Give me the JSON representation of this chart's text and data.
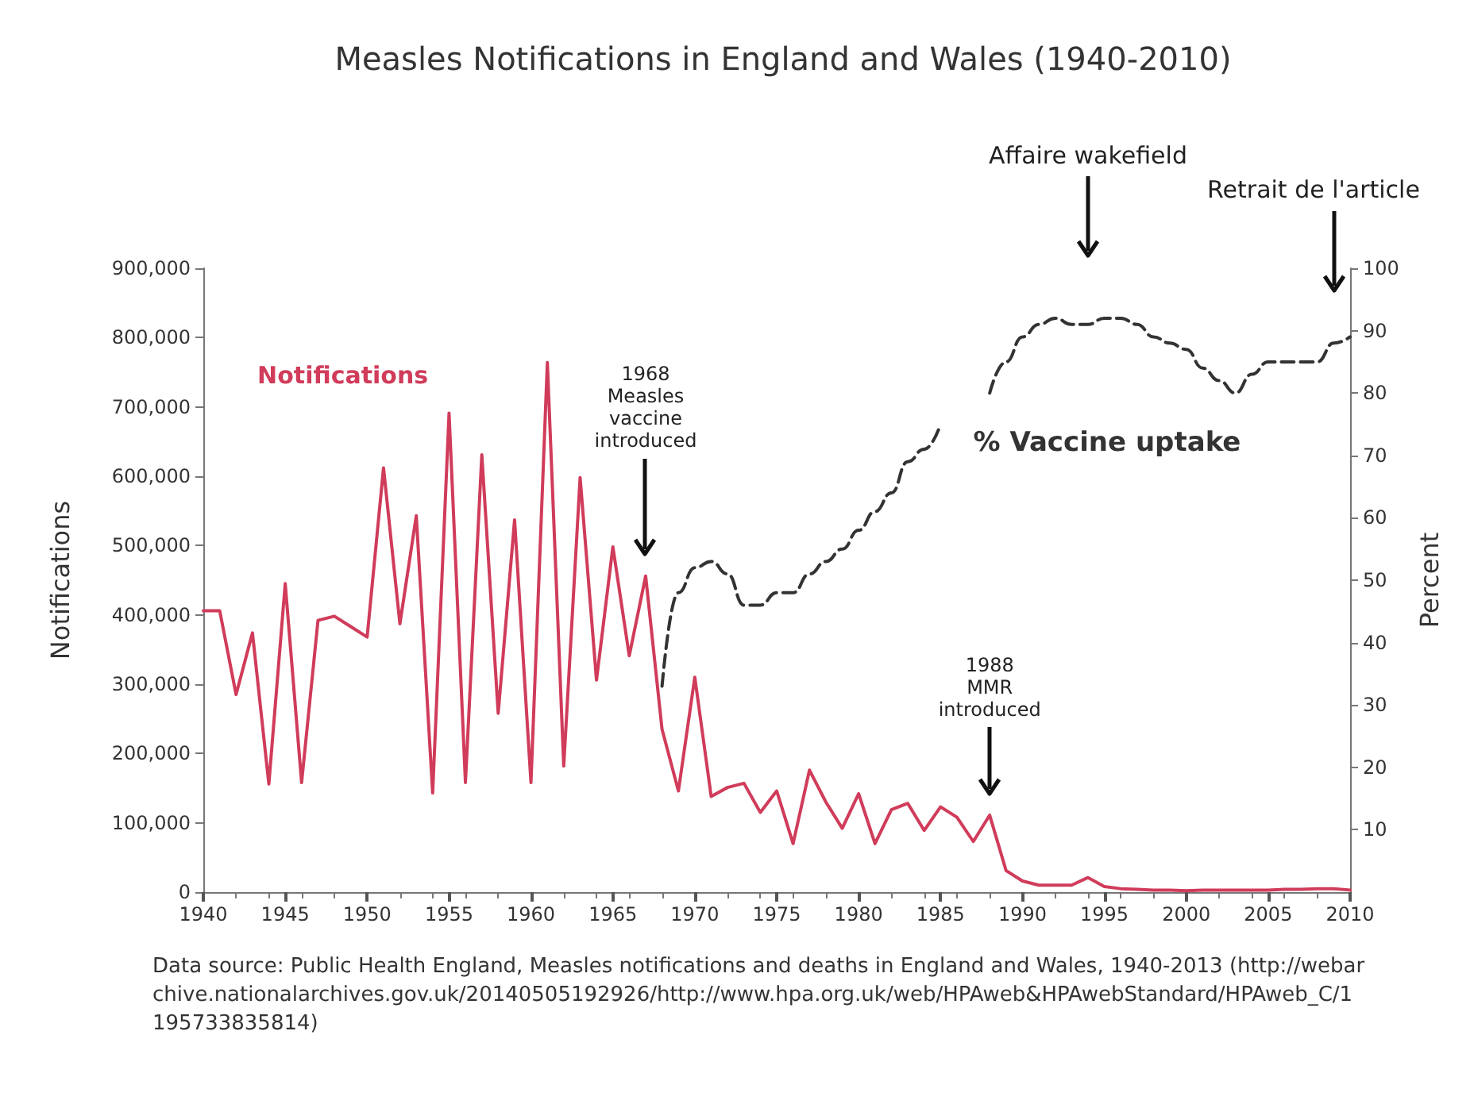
{
  "chart_data": {
    "type": "line",
    "title": "Measles Notifications in England and Wales (1940-2010)",
    "ylabel": "Notifications",
    "y2label": "Percent",
    "x": [
      1940,
      1941,
      1942,
      1943,
      1944,
      1945,
      1946,
      1947,
      1948,
      1949,
      1950,
      1951,
      1952,
      1953,
      1954,
      1955,
      1956,
      1957,
      1958,
      1959,
      1960,
      1961,
      1962,
      1963,
      1964,
      1965,
      1966,
      1967,
      1968,
      1969,
      1970,
      1971,
      1972,
      1973,
      1974,
      1975,
      1976,
      1977,
      1978,
      1979,
      1980,
      1981,
      1982,
      1983,
      1984,
      1985,
      1986,
      1987,
      1988,
      1989,
      1990,
      1991,
      1992,
      1993,
      1994,
      1995,
      1996,
      1997,
      1998,
      1999,
      2000,
      2001,
      2002,
      2003,
      2004,
      2005,
      2006,
      2007,
      2008,
      2009,
      2010
    ],
    "series": [
      {
        "name": "Notifications",
        "color": "#d03c5a",
        "values": [
          406000,
          406000,
          285000,
          374000,
          156000,
          445000,
          158000,
          392000,
          398000,
          383000,
          368000,
          612000,
          387000,
          543000,
          143000,
          691000,
          158000,
          631000,
          258000,
          537000,
          158000,
          764000,
          182000,
          598000,
          306000,
          498000,
          341000,
          456000,
          235000,
          146000,
          310000,
          138000,
          151000,
          157000,
          115000,
          146000,
          70000,
          176000,
          130000,
          92000,
          142000,
          70000,
          119000,
          128000,
          89000,
          123000,
          108000,
          73000,
          111000,
          31000,
          16000,
          10000,
          10000,
          10000,
          21000,
          8000,
          5000,
          4000,
          3000,
          3000,
          2000,
          3000,
          3000,
          3000,
          3000,
          3000,
          4000,
          4000,
          5000,
          5000,
          3000
        ]
      },
      {
        "name": "% Vaccine uptake",
        "color": "#333333",
        "axis": "y2",
        "line_style": "dashed",
        "x": [
          1968,
          1969,
          1970,
          1971,
          1972,
          1973,
          1974,
          1975,
          1976,
          1977,
          1978,
          1979,
          1980,
          1981,
          1982,
          1983,
          1984,
          1985,
          1986,
          1987,
          1988,
          1989,
          1990,
          1991,
          1992,
          1993,
          1994,
          1995,
          1996,
          1997,
          1998,
          1999,
          2000,
          2001,
          2002,
          2003,
          2004,
          2005,
          2006,
          2007,
          2008,
          2009,
          2010
        ],
        "values": [
          33,
          48,
          52,
          53,
          51,
          46,
          46,
          48,
          48,
          51,
          53,
          55,
          58,
          61,
          64,
          69,
          71,
          75,
          null,
          null,
          80,
          85,
          89,
          91,
          92,
          91,
          91,
          92,
          92,
          91,
          89,
          88,
          87,
          84,
          82,
          80,
          83,
          85,
          85,
          85,
          85,
          88,
          89
        ]
      }
    ],
    "xlim": [
      1940,
      2010
    ],
    "xticks": [
      1940,
      1945,
      1950,
      1955,
      1960,
      1965,
      1970,
      1975,
      1980,
      1985,
      1990,
      1995,
      2000,
      2005,
      2010
    ],
    "ylim": [
      0,
      900000
    ],
    "yticks": [
      0,
      {
        "value": 100000,
        "label": "100,000"
      },
      {
        "value": 200000,
        "label": "200,000"
      },
      {
        "value": 300000,
        "label": "300,000"
      },
      {
        "value": 400000,
        "label": "400,000"
      },
      {
        "value": 500000,
        "label": "500,000"
      },
      {
        "value": 600000,
        "label": "600,000"
      },
      {
        "value": 700000,
        "label": "700,000"
      },
      {
        "value": 800000,
        "label": "800,000"
      },
      {
        "value": 900000,
        "label": "900,000"
      }
    ],
    "y2lim": [
      0,
      100
    ],
    "y2ticks": [
      10,
      20,
      30,
      40,
      50,
      60,
      70,
      80,
      90,
      100
    ],
    "grid": false,
    "marker": "none",
    "line_style": "solid",
    "annotations": [
      "1968\nMeasles\nvaccine\nintroduced",
      "1988\nMMR\nintroduced",
      "Affaire wakefield",
      "Retrait de l'article",
      "Data source: Public Health England, Measles notifications and deaths in England and Wales, 1940-2013 (http://webarchive.nationalarchives.gov.uk/20140505192926/http://www.hpa.org.uk/web/HPAweb&HPAwebStandard/HPAweb_C/1195733835814)"
    ]
  }
}
